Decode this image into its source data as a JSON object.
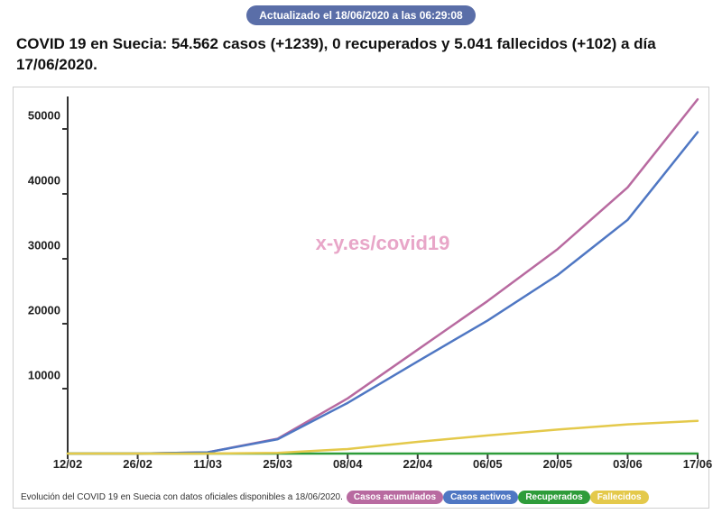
{
  "update_badge": "Actualizado el 18/06/2020 a las 06:29:08",
  "headline": "COVID 19 en Suecia: 54.562 casos (+1239), 0 recuperados y 5.041 fallecidos (+102) a día 17/06/2020.",
  "watermark": "x-y.es/covid19",
  "footer_caption": "Evolución del COVID 19 en Suecia con datos oficiales disponibles a 18/06/2020.",
  "chart": {
    "type": "line",
    "background_color": "#ffffff",
    "border_color": "#cfcfcf",
    "ylim": [
      0,
      55000
    ],
    "y_ticks": [
      10000,
      20000,
      30000,
      40000,
      50000
    ],
    "y_tick_labels": [
      "10000",
      "20000",
      "30000",
      "40000",
      "50000"
    ],
    "x_categories": [
      "12/02",
      "26/02",
      "11/03",
      "25/03",
      "08/04",
      "22/04",
      "06/05",
      "20/05",
      "03/06",
      "17/06"
    ],
    "axis_color": "#333333",
    "axis_width": 2,
    "series": [
      {
        "name": "Casos acumulados",
        "color": "#b86aa0",
        "width": 2.5,
        "values": [
          0,
          0,
          200,
          2300,
          8500,
          16000,
          23500,
          31500,
          41000,
          54562
        ]
      },
      {
        "name": "Casos activos",
        "color": "#4f77c3",
        "width": 2.5,
        "values": [
          0,
          0,
          200,
          2200,
          7800,
          14200,
          20500,
          27500,
          36000,
          49500
        ]
      },
      {
        "name": "Recuperados",
        "color": "#2e9c3a",
        "width": 2.5,
        "values": [
          0,
          0,
          0,
          0,
          0,
          0,
          0,
          0,
          0,
          0
        ]
      },
      {
        "name": "Fallecidos",
        "color": "#e4c94b",
        "width": 2.5,
        "values": [
          0,
          0,
          0,
          100,
          700,
          1800,
          2800,
          3700,
          4500,
          5041
        ]
      }
    ],
    "legend": [
      {
        "label": "Casos acumulados",
        "color": "#b86aa0"
      },
      {
        "label": "Casos activos",
        "color": "#4f77c3"
      },
      {
        "label": "Recuperados",
        "color": "#2e9c3a"
      },
      {
        "label": "Fallecidos",
        "color": "#e4c94b"
      }
    ],
    "tick_fontsize": 13,
    "tick_fontweight": "bold",
    "watermark_color": "#e8a6c8",
    "watermark_fontsize": 22
  }
}
